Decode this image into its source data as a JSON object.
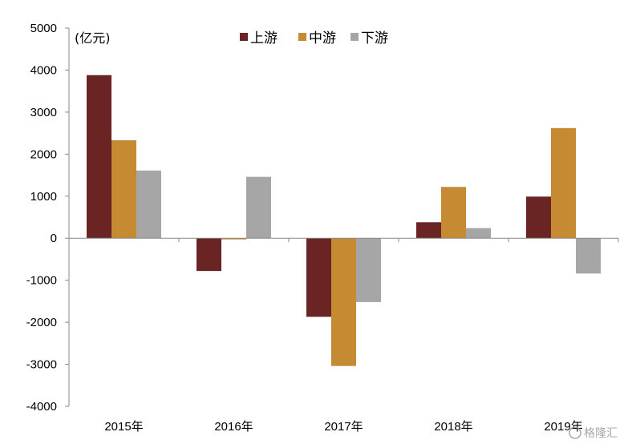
{
  "chart_data": {
    "type": "bar",
    "unit_label": "(亿元)",
    "categories": [
      "2015年",
      "2016年",
      "2017年",
      "2018年",
      "2019年"
    ],
    "series": [
      {
        "name": "上游",
        "color": "#6b2424",
        "values": [
          3880,
          -780,
          -1870,
          380,
          990
        ]
      },
      {
        "name": "中游",
        "color": "#c68a33",
        "values": [
          2330,
          -20,
          -3040,
          1220,
          2620
        ]
      },
      {
        "name": "下游",
        "color": "#a6a6a6",
        "values": [
          1610,
          1460,
          -1520,
          240,
          -840
        ]
      }
    ],
    "ylim": [
      -4000,
      5000
    ],
    "yticks": [
      5000,
      4000,
      3000,
      2000,
      1000,
      0,
      -1000,
      -2000,
      -3000,
      -4000
    ],
    "legend_position": "top"
  },
  "watermark": {
    "text": "格隆汇"
  }
}
